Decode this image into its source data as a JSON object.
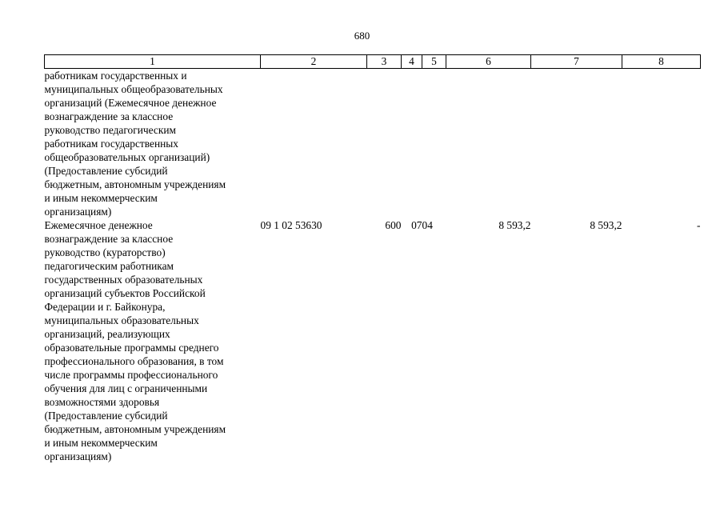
{
  "page_number": "680",
  "columns": [
    "1",
    "2",
    "3",
    "4",
    "5",
    "6",
    "7",
    "8"
  ],
  "rows": [
    {
      "name_lines": [
        "работникам государственных и",
        "муниципальных общеобразовательных",
        "организаций (Ежемесячное денежное",
        "вознаграждение за классное",
        "руководство педагогическим",
        "работникам государственных",
        "общеобразовательных организаций)",
        "(Предоставление субсидий",
        "бюджетным, автономным учреждениям",
        "и иным некоммерческим",
        "организациям)"
      ],
      "code": "",
      "vr": "",
      "rz": "",
      "pr": "",
      "sum1": "",
      "sum2": "",
      "sum3": ""
    },
    {
      "name_lines": [
        "Ежемесячное денежное",
        "вознаграждение за классное",
        "руководство (кураторство)",
        "педагогическим работникам",
        "государственных образовательных",
        "организаций субъектов Российской",
        "Федерации и г. Байконура,",
        "муниципальных образовательных",
        "организаций, реализующих",
        "образовательные программы среднего",
        "профессионального образования, в том",
        "числе программы профессионального",
        "обучения для лиц с ограниченными",
        "возможностями здоровья",
        "(Предоставление субсидий",
        "бюджетным, автономным учреждениям",
        "и иным некоммерческим",
        "организациям)"
      ],
      "code": "09 1 02 53630",
      "vr": "600",
      "rz": "07",
      "pr": "04",
      "sum1": "8 593,2",
      "sum2": "8 593,2",
      "sum3": "-"
    }
  ]
}
